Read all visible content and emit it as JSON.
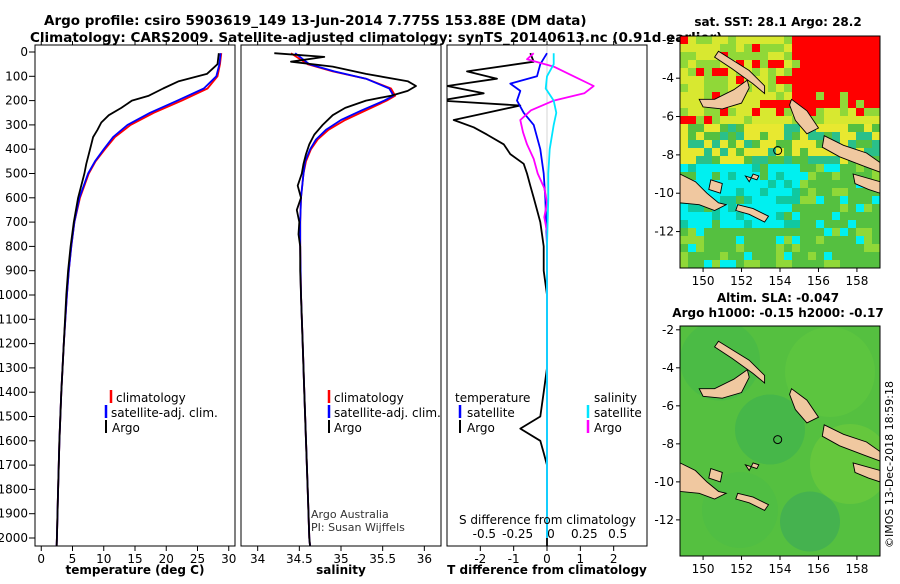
{
  "header": {
    "title_line1": "Argo profile: csiro 5903619_149 13-Jun-2014 7.775S 153.88E (DM data)",
    "title_line2": "Climatology: CARS2009. Satellite-adjusted climatology: synTS_20140613.nc (0.91d earlier)"
  },
  "colors": {
    "climatology": "#ff0000",
    "satellite": "#0000ff",
    "argo": "#000000",
    "satellite_salinity": "#00e5ff",
    "argo_salinity": "#ff00ff",
    "land": "#f0c8a0",
    "sea_green": "#55c040",
    "sst_warm": "#ff0000",
    "sst_yellow": "#d8e830",
    "sst_cyan": "#00f0f0"
  },
  "depth_axis": {
    "ticks": [
      0,
      100,
      200,
      300,
      400,
      500,
      600,
      700,
      800,
      900,
      1000,
      1100,
      1200,
      1300,
      1400,
      1500,
      1600,
      1700,
      1800,
      1900,
      2000
    ],
    "labels": [
      "0",
      "100",
      "200",
      "300",
      "400",
      "500",
      "600",
      "700",
      "800",
      "900",
      "1000",
      "1100",
      "1200",
      "1300",
      "1400",
      "1500",
      "1600",
      "1700",
      "1800",
      "1900",
      "2000"
    ]
  },
  "legend_profiles": {
    "climatology": "climatology",
    "satellite": "satellite-adj. clim.",
    "argo": "Argo"
  },
  "legend_diff": {
    "temperature_title": "temperature",
    "salinity_title": "salinity",
    "satellite": "satellite",
    "argo": "Argo"
  },
  "credits": {
    "line1": "Argo Australia",
    "line2": "PI: Susan Wijffels"
  },
  "chart_data": [
    {
      "type": "line",
      "title": "",
      "xlabel": "temperature (deg C)",
      "ylabel": "depth",
      "xlim": [
        -1,
        31
      ],
      "ylim": [
        2050,
        0
      ],
      "xticks": [
        0,
        5,
        10,
        15,
        20,
        25,
        30
      ],
      "xtick_labels": [
        "0",
        "5",
        "10",
        "15",
        "20",
        "25",
        "30"
      ],
      "series": [
        {
          "name": "climatology",
          "depth": [
            5,
            50,
            100,
            150,
            200,
            250,
            300,
            350,
            400,
            450,
            500,
            600,
            700,
            800,
            900,
            1000,
            1200,
            1400,
            1600,
            1800,
            2000,
            2040
          ],
          "values": [
            28.8,
            28.6,
            28.2,
            26.6,
            22.5,
            18.0,
            14.3,
            11.8,
            10.2,
            8.7,
            7.6,
            6.2,
            5.3,
            4.8,
            4.4,
            4.1,
            3.6,
            3.2,
            2.9,
            2.7,
            2.5,
            2.45
          ]
        },
        {
          "name": "satellite-adj. clim.",
          "depth": [
            5,
            50,
            100,
            150,
            200,
            250,
            300,
            350,
            400,
            450,
            500,
            600,
            700,
            800,
            900,
            1000,
            1200,
            1400,
            1600,
            1800,
            2000,
            2040
          ],
          "values": [
            28.7,
            28.5,
            28.0,
            26.0,
            21.8,
            17.4,
            13.8,
            11.5,
            10.0,
            8.6,
            7.5,
            6.1,
            5.3,
            4.8,
            4.4,
            4.1,
            3.6,
            3.2,
            2.9,
            2.7,
            2.5,
            2.45
          ]
        },
        {
          "name": "Argo",
          "depth": [
            5,
            50,
            90,
            120,
            150,
            180,
            200,
            230,
            260,
            290,
            320,
            350,
            380,
            420,
            460,
            500,
            600,
            700,
            800,
            900,
            1000,
            1200,
            1400,
            1600,
            1800,
            2000,
            2040
          ],
          "values": [
            28.4,
            28.2,
            26.5,
            22.0,
            19.5,
            17.2,
            14.5,
            12.8,
            10.8,
            9.6,
            9.0,
            8.3,
            8.0,
            7.6,
            7.2,
            6.9,
            5.9,
            5.2,
            4.7,
            4.3,
            4.0,
            3.6,
            3.2,
            2.9,
            2.7,
            2.5,
            2.45
          ]
        }
      ]
    },
    {
      "type": "line",
      "title": "",
      "xlabel": "salinity",
      "ylabel": "depth",
      "xlim": [
        33.8,
        36.2
      ],
      "ylim": [
        2050,
        0
      ],
      "xticks": [
        34,
        34.5,
        35,
        35.5,
        36
      ],
      "xtick_labels": [
        "34",
        "34.5",
        "35",
        "35.5",
        "36"
      ],
      "series": [
        {
          "name": "climatology",
          "depth": [
            5,
            50,
            80,
            110,
            150,
            180,
            200,
            240,
            280,
            320,
            360,
            400,
            450,
            500,
            600,
            700,
            800,
            1000,
            1200,
            1400,
            1600,
            1800,
            2000,
            2040
          ],
          "values": [
            34.4,
            34.6,
            34.9,
            35.3,
            35.6,
            35.65,
            35.55,
            35.3,
            35.05,
            34.85,
            34.72,
            34.64,
            34.58,
            34.55,
            34.52,
            34.51,
            34.51,
            34.52,
            34.54,
            34.56,
            34.58,
            34.6,
            34.62,
            34.63
          ]
        },
        {
          "name": "satellite-adj. clim.",
          "depth": [
            5,
            50,
            80,
            110,
            150,
            180,
            200,
            240,
            280,
            320,
            360,
            400,
            450,
            500,
            600,
            700,
            800,
            1000,
            1200,
            1400,
            1600,
            1800,
            2000,
            2040
          ],
          "values": [
            34.45,
            34.62,
            34.92,
            35.3,
            35.58,
            35.63,
            35.52,
            35.25,
            35.0,
            34.82,
            34.7,
            34.63,
            34.57,
            34.55,
            34.52,
            34.51,
            34.51,
            34.52,
            34.54,
            34.56,
            34.58,
            34.6,
            34.62,
            34.63
          ]
        },
        {
          "name": "Argo",
          "depth": [
            5,
            20,
            40,
            60,
            90,
            120,
            140,
            160,
            180,
            200,
            230,
            260,
            300,
            340,
            380,
            420,
            460,
            500,
            550,
            600,
            650,
            700,
            750,
            800,
            900,
            1000,
            1200,
            1400,
            1600,
            1800,
            2000,
            2040
          ],
          "values": [
            34.2,
            34.8,
            34.4,
            34.9,
            35.3,
            35.8,
            35.9,
            35.8,
            35.6,
            35.3,
            35.05,
            34.9,
            34.78,
            34.68,
            34.62,
            34.58,
            34.55,
            34.53,
            34.48,
            34.52,
            34.47,
            34.5,
            34.49,
            34.51,
            34.51,
            34.52,
            34.54,
            34.56,
            34.58,
            34.6,
            34.62,
            34.63
          ]
        }
      ]
    },
    {
      "type": "line",
      "title": "S difference from climatology",
      "xlabel": "T difference from climatology",
      "ylabel": "depth",
      "xlim": [
        -3.0,
        3.0
      ],
      "ylim": [
        2050,
        0
      ],
      "xticks": [
        -2,
        -1,
        0,
        1,
        2
      ],
      "xtick_labels": [
        "-2",
        "-1",
        "0",
        "1",
        "2"
      ],
      "top_xtick_labels": [
        "-0.5",
        "-0.25",
        "0",
        "0.25",
        "0.5"
      ],
      "series": [
        {
          "name": "T satellite",
          "depth": [
            5,
            50,
            100,
            130,
            160,
            200,
            250,
            300,
            400,
            500,
            600,
            800,
            1000,
            1500,
            2000
          ],
          "values": [
            0.0,
            -0.2,
            -0.3,
            -1.1,
            -0.8,
            -0.9,
            -0.7,
            -0.4,
            -0.2,
            -0.1,
            -0.05,
            0.0,
            0.0,
            0.0,
            0.0
          ]
        },
        {
          "name": "T Argo",
          "depth": [
            5,
            40,
            80,
            110,
            140,
            170,
            200,
            220,
            250,
            280,
            310,
            340,
            380,
            420,
            460,
            500,
            550,
            600,
            650,
            700,
            800,
            900,
            1000,
            1100,
            1200,
            1300,
            1400,
            1500,
            1550,
            1600,
            1650,
            1700,
            1800,
            1900,
            2000,
            2040
          ],
          "values": [
            -0.5,
            -0.4,
            -2.4,
            -1.5,
            -3.0,
            -1.9,
            -3.2,
            -0.8,
            -1.8,
            -2.8,
            -2.2,
            -1.8,
            -1.3,
            -1.1,
            -0.7,
            -0.6,
            -0.5,
            -0.4,
            -0.3,
            -0.2,
            -0.1,
            -0.1,
            0.0,
            0.0,
            0.0,
            0.0,
            -0.1,
            -0.2,
            -0.8,
            -0.2,
            -0.1,
            0.0,
            0.0,
            0.0,
            0.0,
            0.0
          ]
        },
        {
          "name": "S satellite",
          "depth": [
            5,
            50,
            100,
            150,
            200,
            250,
            300,
            400,
            500,
            600,
            800,
            1000,
            1500,
            2000
          ],
          "values": [
            0.05,
            0.05,
            0.0,
            -0.01,
            0.05,
            0.07,
            0.05,
            0.02,
            0.01,
            0.01,
            0.0,
            0.0,
            0.0,
            0.0
          ]
        },
        {
          "name": "S Argo",
          "depth": [
            5,
            30,
            60,
            100,
            140,
            170,
            200,
            240,
            280,
            330,
            380,
            440,
            500,
            560,
            620,
            680,
            740,
            800,
            900,
            1000,
            1500,
            2000
          ],
          "values": [
            -0.1,
            -0.15,
            0.05,
            0.2,
            0.35,
            0.28,
            0.05,
            -0.12,
            -0.2,
            -0.18,
            -0.15,
            -0.1,
            -0.07,
            -0.02,
            0.0,
            -0.02,
            0.0,
            0.0,
            0.0,
            0.0,
            0.0,
            0.0
          ]
        }
      ]
    }
  ],
  "maps": {
    "top": {
      "title": "sat. SST: 28.1 Argo: 28.2",
      "lat_ticks": [
        "-2",
        "-4",
        "-6",
        "-8",
        "-10",
        "-12"
      ],
      "lon_ticks": [
        "150",
        "152",
        "154",
        "156",
        "158"
      ],
      "lat_values": [
        -2,
        -4,
        -6,
        -8,
        -10,
        -12
      ],
      "lon_values": [
        150,
        152,
        154,
        156,
        158
      ],
      "marker": {
        "lon": 153.88,
        "lat": -7.775
      }
    },
    "bottom": {
      "title_line1": "Altim. SLA: -0.047",
      "title_line2": "Argo h1000: -0.15 h2000: -0.17",
      "lat_ticks": [
        "-2",
        "-4",
        "-6",
        "-8",
        "-10",
        "-12"
      ],
      "lon_ticks": [
        "150",
        "152",
        "154",
        "156",
        "158"
      ],
      "lat_values": [
        -2,
        -4,
        -6,
        -8,
        -10,
        -12
      ],
      "lon_values": [
        150,
        152,
        154,
        156,
        158
      ],
      "marker": {
        "lon": 153.88,
        "lat": -7.775
      }
    }
  },
  "footer": {
    "stamp": "©IMOS 13-Dec-2018 18:59:18"
  }
}
